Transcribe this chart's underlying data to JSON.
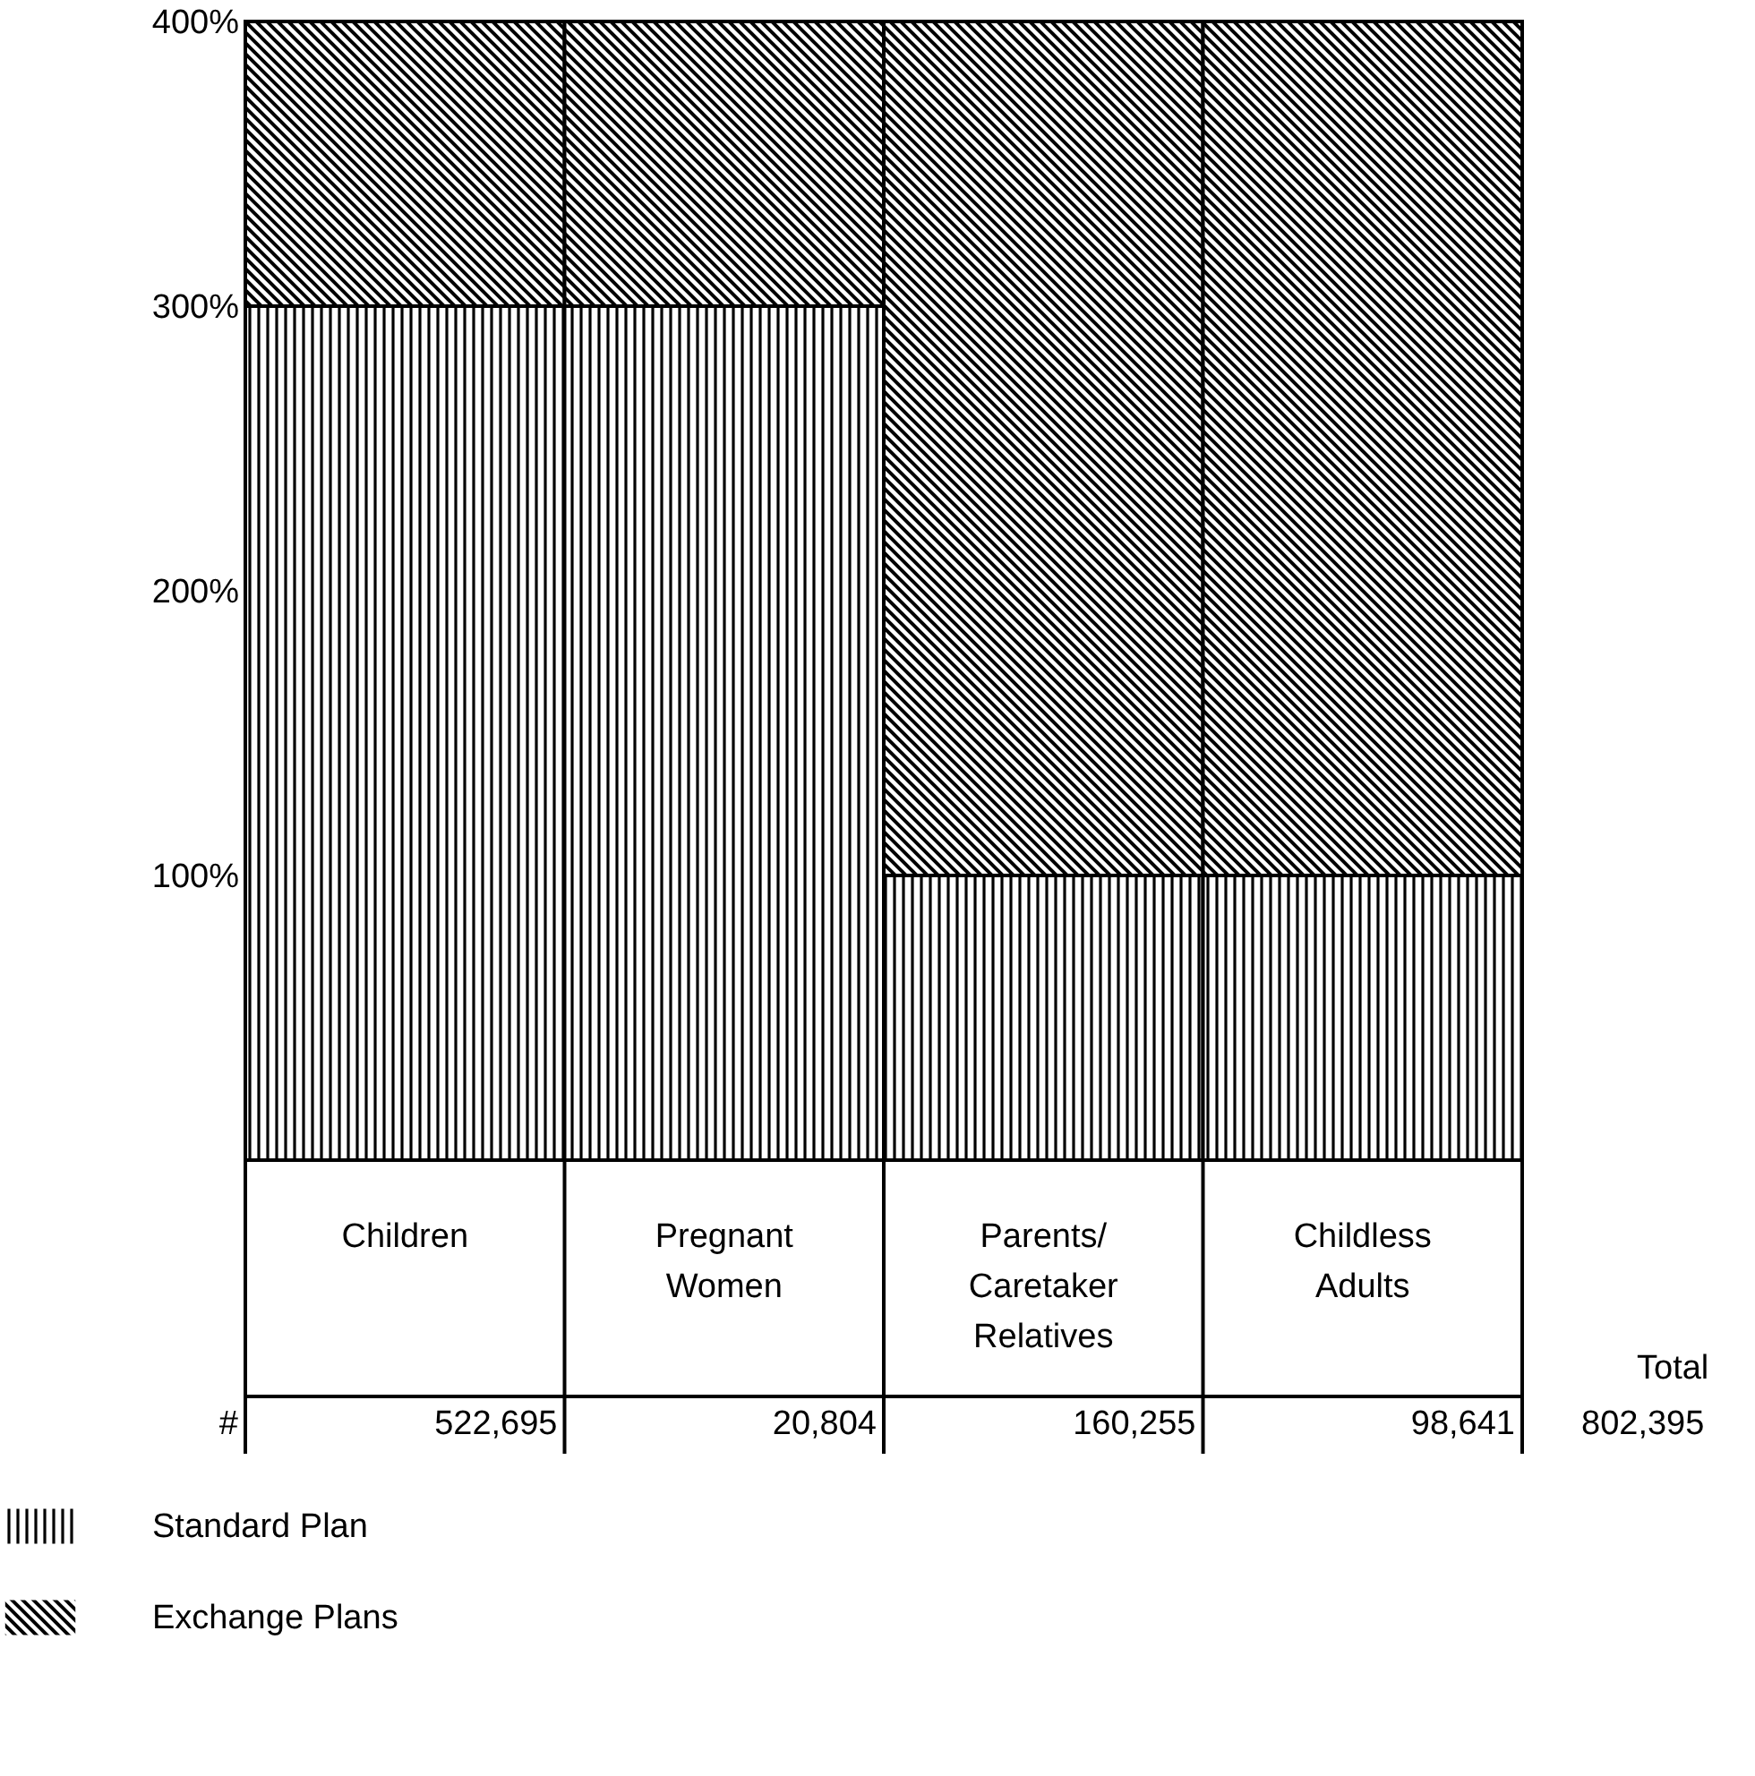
{
  "chart_data": {
    "type": "bar",
    "stacked": true,
    "categories": [
      "Children",
      "Pregnant Women",
      "Parents/ Caretaker Relatives",
      "Childless Adults"
    ],
    "series": [
      {
        "name": "Standard Plan",
        "color": "#000000",
        "values": [
          300,
          300,
          100,
          100
        ]
      },
      {
        "name": "Exchange Plans",
        "color": "#000000",
        "values": [
          100,
          100,
          300,
          300
        ]
      }
    ],
    "ylim": [
      0,
      400
    ],
    "yticks": [
      {
        "value": 100,
        "label": "100%"
      },
      {
        "value": 200,
        "label": "200%"
      },
      {
        "value": 300,
        "label": "300%"
      },
      {
        "value": 400,
        "label": "400%"
      }
    ],
    "legend": "bottom left",
    "annotations": [
      "#",
      "522,695",
      "20,804",
      "160,255",
      "98,641",
      "Total",
      "802,395"
    ]
  }
}
